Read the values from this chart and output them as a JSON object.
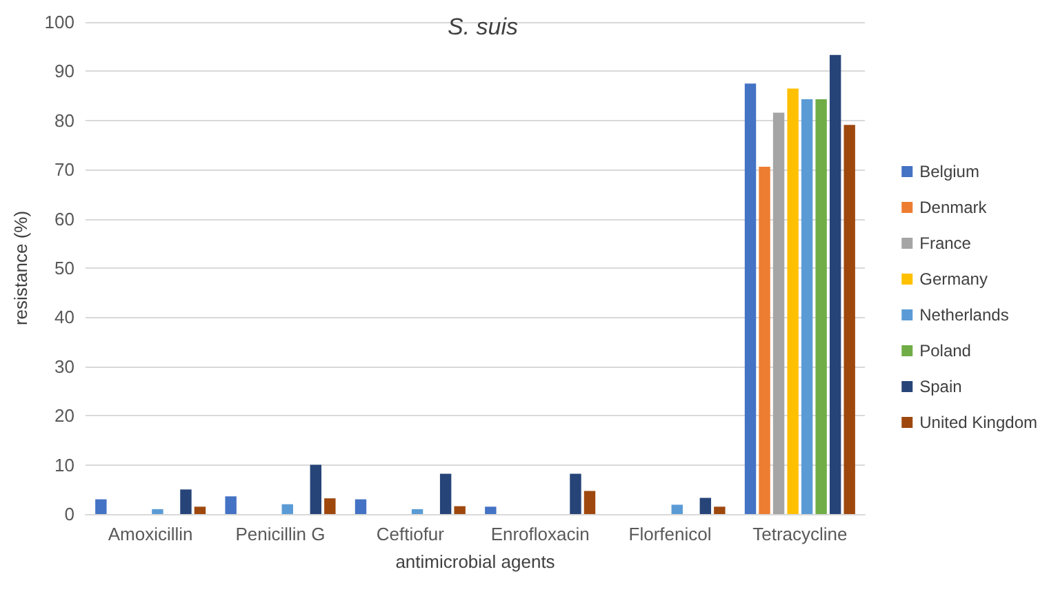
{
  "chart_data": {
    "type": "bar",
    "title": "S. suis",
    "xlabel": "antimicrobial agents",
    "ylabel": "resistance (%)",
    "categories": [
      "Amoxicillin",
      "Penicillin G",
      "Ceftiofur",
      "Enrofloxacin",
      "Florfenicol",
      "Tetracycline"
    ],
    "series": [
      {
        "name": "Belgium",
        "color": "#4472c4",
        "values": [
          3,
          3.6,
          3,
          1.5,
          null,
          87.5
        ]
      },
      {
        "name": "Denmark",
        "color": "#ed7d31",
        "values": [
          null,
          null,
          null,
          null,
          null,
          70.6
        ]
      },
      {
        "name": "France",
        "color": "#a5a5a5",
        "values": [
          null,
          null,
          null,
          null,
          null,
          81.6
        ]
      },
      {
        "name": "Germany",
        "color": "#ffc000",
        "values": [
          null,
          null,
          null,
          null,
          null,
          86.5
        ]
      },
      {
        "name": "Netherlands",
        "color": "#5b9bd5",
        "values": [
          1,
          2,
          1,
          null,
          1.9,
          84.3
        ]
      },
      {
        "name": "Poland",
        "color": "#70ad47",
        "values": [
          null,
          null,
          null,
          null,
          null,
          84.3
        ]
      },
      {
        "name": "Spain",
        "color": "#264478",
        "values": [
          5,
          10,
          8.2,
          8.2,
          3.3,
          93.3
        ]
      },
      {
        "name": "United Kingdom",
        "color": "#9e480e",
        "values": [
          1.5,
          3.2,
          1.6,
          4.7,
          1.5,
          79.1
        ]
      }
    ],
    "ylim": [
      0,
      100
    ],
    "yticks": [
      0,
      10,
      20,
      30,
      40,
      50,
      60,
      70,
      80,
      90,
      100
    ],
    "grid": "y",
    "legend": "right"
  }
}
